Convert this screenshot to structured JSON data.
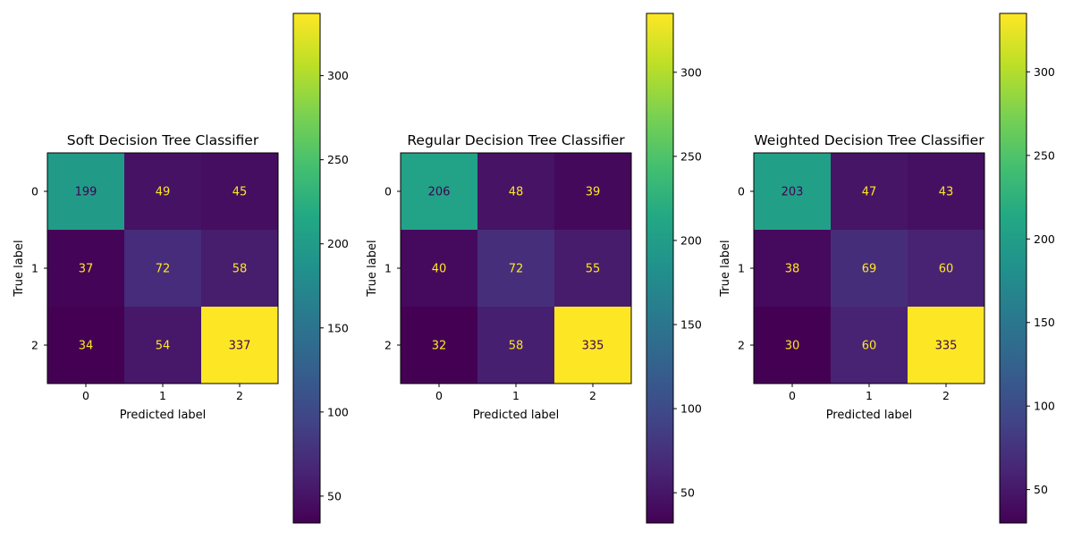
{
  "chart_data": [
    {
      "type": "heatmap",
      "title": "Soft Decision Tree Classifier",
      "xlabel": "Predicted label",
      "ylabel": "True label",
      "x_categories": [
        "0",
        "1",
        "2"
      ],
      "y_categories": [
        "0",
        "1",
        "2"
      ],
      "matrix": [
        [
          199,
          49,
          45
        ],
        [
          37,
          72,
          58
        ],
        [
          34,
          54,
          337
        ]
      ],
      "colormap": "viridis",
      "colorbar": {
        "range": [
          34,
          337
        ],
        "ticks": [
          50,
          100,
          150,
          200,
          250,
          300
        ]
      }
    },
    {
      "type": "heatmap",
      "title": "Regular Decision Tree Classifier",
      "xlabel": "Predicted label",
      "ylabel": "True label",
      "x_categories": [
        "0",
        "1",
        "2"
      ],
      "y_categories": [
        "0",
        "1",
        "2"
      ],
      "matrix": [
        [
          206,
          48,
          39
        ],
        [
          40,
          72,
          55
        ],
        [
          32,
          58,
          335
        ]
      ],
      "colormap": "viridis",
      "colorbar": {
        "range": [
          32,
          335
        ],
        "ticks": [
          50,
          100,
          150,
          200,
          250,
          300
        ]
      }
    },
    {
      "type": "heatmap",
      "title": "Weighted Decision Tree Classifier",
      "xlabel": "Predicted label",
      "ylabel": "True label",
      "x_categories": [
        "0",
        "1",
        "2"
      ],
      "y_categories": [
        "0",
        "1",
        "2"
      ],
      "matrix": [
        [
          203,
          47,
          43
        ],
        [
          38,
          69,
          60
        ],
        [
          30,
          60,
          335
        ]
      ],
      "colormap": "viridis",
      "colorbar": {
        "range": [
          30,
          335
        ],
        "ticks": [
          50,
          100,
          150,
          200,
          250,
          300
        ]
      }
    }
  ]
}
